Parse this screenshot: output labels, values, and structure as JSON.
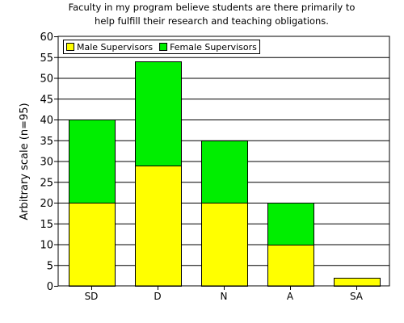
{
  "chart_data": {
    "type": "bar",
    "stacked": true,
    "title": [
      "Faculty in my program believe students are there primarily to",
      "help fulfill their research and teaching obligations."
    ],
    "xlabel": "",
    "ylabel": "Arbitrary scale (n=95)",
    "categories": [
      "SD",
      "D",
      "N",
      "A",
      "SA"
    ],
    "series": [
      {
        "name": "Male Supervisors",
        "color": "#ffff00",
        "values": [
          20,
          29,
          20,
          10,
          2
        ]
      },
      {
        "name": "Female Supervisors",
        "color": "#00ee00",
        "values": [
          20,
          25,
          15,
          10,
          0
        ]
      }
    ],
    "ylim": [
      0,
      60
    ],
    "yticks": [
      0,
      5,
      10,
      15,
      20,
      25,
      30,
      35,
      40,
      45,
      50,
      55,
      60
    ],
    "grid": true,
    "legend_position": "top-left"
  }
}
